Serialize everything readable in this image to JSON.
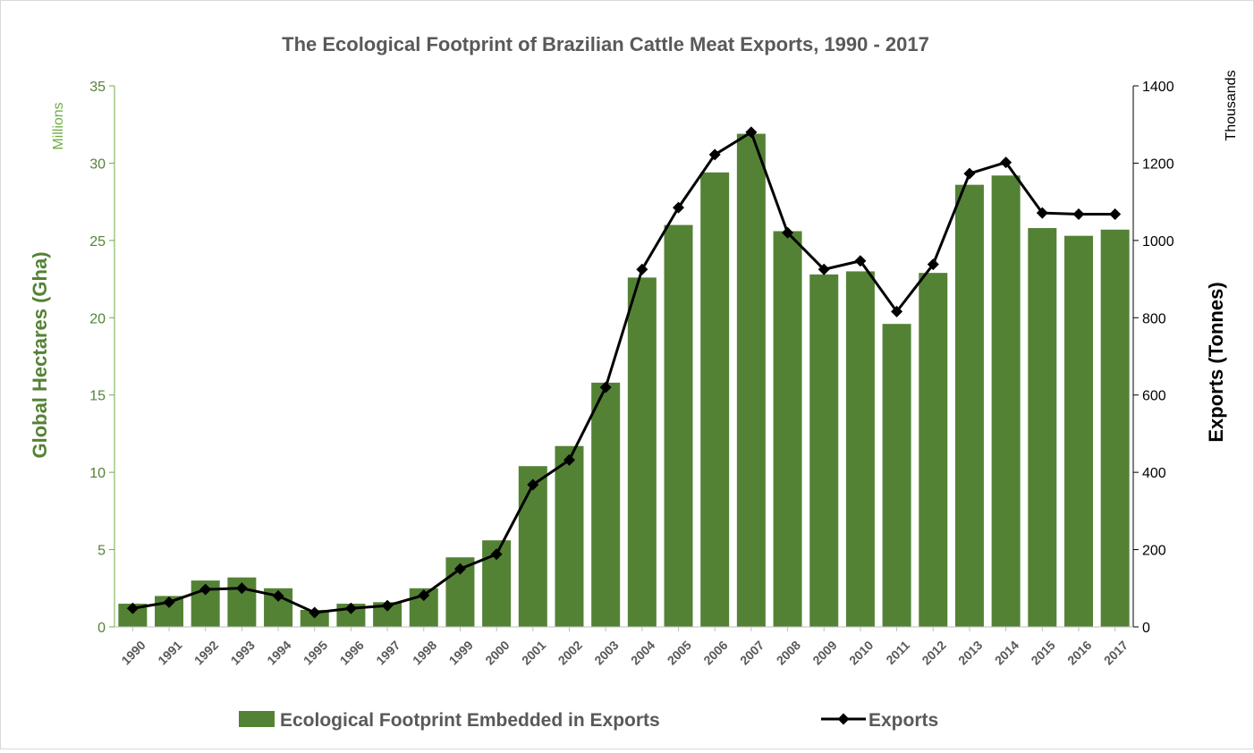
{
  "chart_data": {
    "type": "bar",
    "title": "The Ecological Footprint of Brazilian Cattle Meat Exports, 1990 - 2017",
    "categories": [
      "1990",
      "1991",
      "1992",
      "1993",
      "1994",
      "1995",
      "1996",
      "1997",
      "1998",
      "1999",
      "2000",
      "2001",
      "2002",
      "2003",
      "2004",
      "2005",
      "2006",
      "2007",
      "2008",
      "2009",
      "2010",
      "2011",
      "2012",
      "2013",
      "2014",
      "2015",
      "2016",
      "2017"
    ],
    "y_left": {
      "label": "Global Hectares (Gha)",
      "unit": "Millions",
      "range": [
        0,
        35
      ],
      "ticks": [
        "0",
        "5",
        "10",
        "15",
        "20",
        "25",
        "30",
        "35"
      ]
    },
    "y_right": {
      "label": "Exports (Tonnes)",
      "unit": "Thousands",
      "range": [
        0,
        1400
      ],
      "ticks": [
        "0",
        "200",
        "400",
        "600",
        "800",
        "1000",
        "1200",
        "1400"
      ]
    },
    "series": [
      {
        "name": "Ecological Footprint Embedded in Exports",
        "type": "bar",
        "axis": "left",
        "color": "#548235",
        "values": [
          1.5,
          2.0,
          3.0,
          3.2,
          2.5,
          1.1,
          1.5,
          1.6,
          2.5,
          4.5,
          5.6,
          10.4,
          11.7,
          15.8,
          22.6,
          26.0,
          29.4,
          31.9,
          25.6,
          22.8,
          23.0,
          19.6,
          22.9,
          28.6,
          29.2,
          25.8,
          25.3,
          25.7
        ]
      },
      {
        "name": "Exports",
        "type": "line",
        "axis": "right",
        "color": "#000000",
        "marker": "diamond",
        "values": [
          48,
          64,
          97,
          100,
          80,
          37,
          48,
          55,
          82,
          150,
          188,
          368,
          432,
          620,
          925,
          1085,
          1222,
          1280,
          1020,
          925,
          947,
          816,
          938,
          1173,
          1202,
          1071,
          1068,
          1068
        ]
      }
    ],
    "grid": false,
    "legend": "bottom"
  }
}
